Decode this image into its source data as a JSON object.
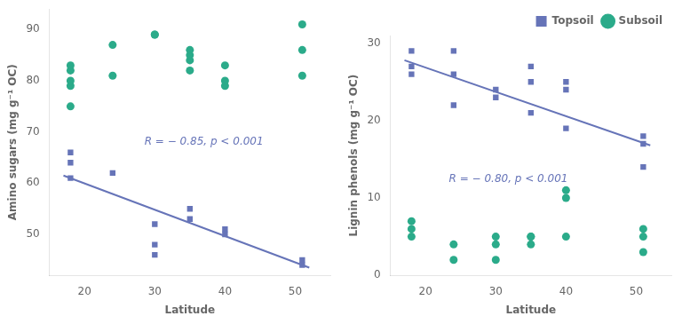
{
  "chart_data": [
    {
      "type": "scatter",
      "xlabel": "Latitude",
      "ylabel": "Amino sugars (mg g⁻¹ OC)",
      "annotation": "R = − 0.85, p < 0.001",
      "annotation_color": "#6674b8",
      "xlim": [
        15,
        55
      ],
      "ylim": [
        42,
        94
      ],
      "xticks": [
        20,
        30,
        40,
        50
      ],
      "yticks": [
        50,
        60,
        70,
        80,
        90
      ],
      "grid": false,
      "series": [
        {
          "color": "#6674b8",
          "marker": "square",
          "x": [
            18,
            18,
            18,
            24,
            30,
            30,
            30,
            35,
            35,
            40,
            40,
            51,
            51
          ],
          "values": [
            61,
            64,
            66,
            62,
            52,
            48,
            46,
            55,
            53,
            51,
            50,
            45,
            44
          ]
        },
        {
          "color": "#2bab8a",
          "marker": "circle",
          "x": [
            18,
            18,
            18,
            18,
            18,
            24,
            24,
            30,
            30,
            35,
            35,
            35,
            35,
            40,
            40,
            40,
            51,
            51,
            51
          ],
          "values": [
            75,
            79,
            80,
            82,
            83,
            81,
            87,
            89,
            89,
            82,
            84,
            85,
            86,
            79,
            80,
            83,
            81,
            86,
            91
          ]
        },
        {
          "type": "line",
          "color": "#6674b8",
          "x": [
            17,
            52
          ],
          "values": [
            61.5,
            43.5
          ]
        }
      ]
    },
    {
      "type": "scatter",
      "xlabel": "Latitude",
      "ylabel": "Lignin phenols (mg g⁻¹ OC)",
      "annotation": "R = − 0.80, p < 0.001",
      "annotation_color": "#6674b8",
      "xlim": [
        15,
        55
      ],
      "ylim": [
        0,
        31
      ],
      "xticks": [
        20,
        30,
        40,
        50
      ],
      "yticks": [
        0,
        10,
        20,
        30
      ],
      "grid": false,
      "legend": "upper right",
      "series": [
        {
          "name": "Topsoil",
          "color": "#6674b8",
          "marker": "square",
          "x": [
            18,
            18,
            18,
            24,
            24,
            24,
            30,
            30,
            35,
            35,
            35,
            40,
            40,
            40,
            51,
            51,
            51
          ],
          "values": [
            26,
            27,
            29,
            22,
            26,
            29,
            23,
            24,
            21,
            25,
            27,
            19,
            24,
            25,
            14,
            17,
            18
          ]
        },
        {
          "name": "Subsoil",
          "color": "#2bab8a",
          "marker": "circle",
          "x": [
            18,
            18,
            18,
            24,
            24,
            30,
            30,
            30,
            35,
            35,
            35,
            40,
            40,
            40,
            51,
            51,
            51
          ],
          "values": [
            5,
            6,
            7,
            2,
            4,
            2,
            4,
            5,
            4,
            5,
            5,
            5,
            10,
            11,
            3,
            5,
            6
          ]
        },
        {
          "type": "line",
          "color": "#6674b8",
          "x": [
            17,
            52
          ],
          "values": [
            27.8,
            16.8
          ]
        }
      ]
    }
  ]
}
